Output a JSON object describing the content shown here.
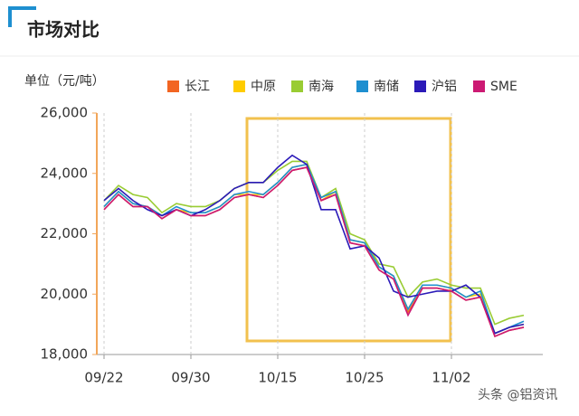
{
  "page": {
    "title": "市场对比",
    "watermark": "头条 @铝资讯"
  },
  "chart_data": {
    "type": "line",
    "y_label": "单位（元/吨）",
    "categories": [
      "09/22",
      null,
      null,
      null,
      null,
      null,
      "09/30",
      null,
      null,
      null,
      null,
      null,
      "10/15",
      null,
      null,
      null,
      null,
      null,
      "10/25",
      null,
      null,
      null,
      null,
      null,
      "11/02",
      null,
      null,
      null,
      null,
      null
    ],
    "ylim": [
      18000,
      26000
    ],
    "yticks": [
      {
        "value": 18000,
        "label": "18,000"
      },
      {
        "value": 20000,
        "label": "20,000"
      },
      {
        "value": 22000,
        "label": "22,000"
      },
      {
        "value": 24000,
        "label": "24,000"
      },
      {
        "value": 26000,
        "label": "26,000"
      }
    ],
    "series": [
      {
        "name": "长江",
        "color": "#f26522",
        "values": [
          22800,
          23300,
          22900,
          22900,
          22500,
          22800,
          22600,
          22600,
          22800,
          23200,
          23300,
          23200,
          23600,
          24100,
          24200,
          23100,
          23300,
          21700,
          21600,
          20800,
          20500,
          19400,
          20200,
          20200,
          20100,
          19800,
          19900,
          18600,
          18800,
          18900
        ]
      },
      {
        "name": "中原",
        "color": "#ffcc00",
        "values": [
          22900,
          23400,
          23000,
          22900,
          22600,
          22800,
          22700,
          22700,
          22900,
          23300,
          23300,
          23300,
          23700,
          24200,
          24300,
          23100,
          23400,
          21800,
          21700,
          20900,
          20600,
          19500,
          20300,
          20300,
          20200,
          19900,
          20000,
          18700,
          18900,
          19000
        ]
      },
      {
        "name": "南海",
        "color": "#99cc33",
        "values": [
          23100,
          23600,
          23300,
          23200,
          22700,
          23000,
          22900,
          22900,
          23100,
          23500,
          23700,
          23700,
          24100,
          24400,
          24400,
          23200,
          23500,
          22000,
          21800,
          21000,
          20900,
          19900,
          20400,
          20500,
          20300,
          20200,
          20200,
          19000,
          19200,
          19300
        ]
      },
      {
        "name": "南储",
        "color": "#1e8fd0",
        "values": [
          22900,
          23400,
          23000,
          22900,
          22600,
          22900,
          22700,
          22700,
          22900,
          23300,
          23400,
          23300,
          23700,
          24200,
          24300,
          23200,
          23400,
          21800,
          21700,
          20900,
          20600,
          19500,
          20300,
          20300,
          20200,
          19900,
          20100,
          18700,
          18900,
          19100
        ]
      },
      {
        "name": "沪铝",
        "color": "#2b1ab8",
        "values": [
          23100,
          23500,
          23100,
          22800,
          22600,
          22800,
          22600,
          22800,
          23100,
          23500,
          23700,
          23700,
          24200,
          24600,
          24300,
          22800,
          22800,
          21500,
          21600,
          21200,
          20100,
          19900,
          20000,
          20100,
          20100,
          20300,
          19900,
          18700,
          18900,
          19000
        ]
      },
      {
        "name": "SME",
        "color": "#cc1a73",
        "values": [
          22800,
          23300,
          22900,
          22900,
          22500,
          22800,
          22600,
          22600,
          22800,
          23200,
          23300,
          23200,
          23600,
          24100,
          24200,
          23100,
          23300,
          21700,
          21600,
          20800,
          20500,
          19300,
          20200,
          20200,
          20100,
          19800,
          19900,
          18600,
          18800,
          18900
        ]
      }
    ]
  }
}
